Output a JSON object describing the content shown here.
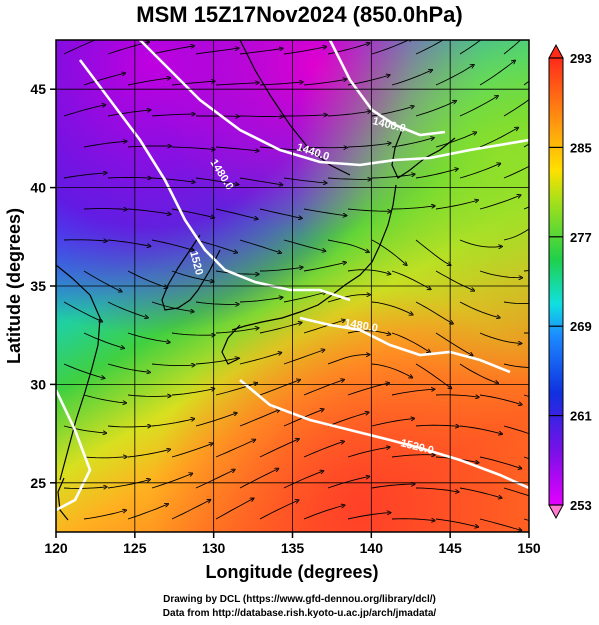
{
  "title": "MSM 15Z17Nov2024 (850.0hPa)",
  "xaxis": {
    "label": "Longitude (degrees)",
    "ticks": [
      "120",
      "125",
      "130",
      "135",
      "140",
      "145",
      "150"
    ],
    "range": [
      120,
      150
    ]
  },
  "yaxis": {
    "label": "Latitude  (degrees)",
    "ticks": [
      "25",
      "30",
      "35",
      "40",
      "45"
    ],
    "range": [
      22.5,
      47.5
    ]
  },
  "colorbar": {
    "ticks": [
      "293",
      "285",
      "277",
      "269",
      "261",
      "253"
    ],
    "min": 253,
    "max": 293
  },
  "contour_labels": [
    "1400.0",
    "1440.0",
    "1480.0",
    "1520",
    "1480.0",
    "1520.0"
  ],
  "colors": {
    "grid": "#000000",
    "contour": "#ffffff",
    "coast": "#000000"
  },
  "footer": {
    "line1": "Drawing by DCL (https://www.gfd-dennou.org/library/dcl/)",
    "line2": "Data from http://database.rish.kyoto-u.ac.jp/arch/jmadata/"
  }
}
